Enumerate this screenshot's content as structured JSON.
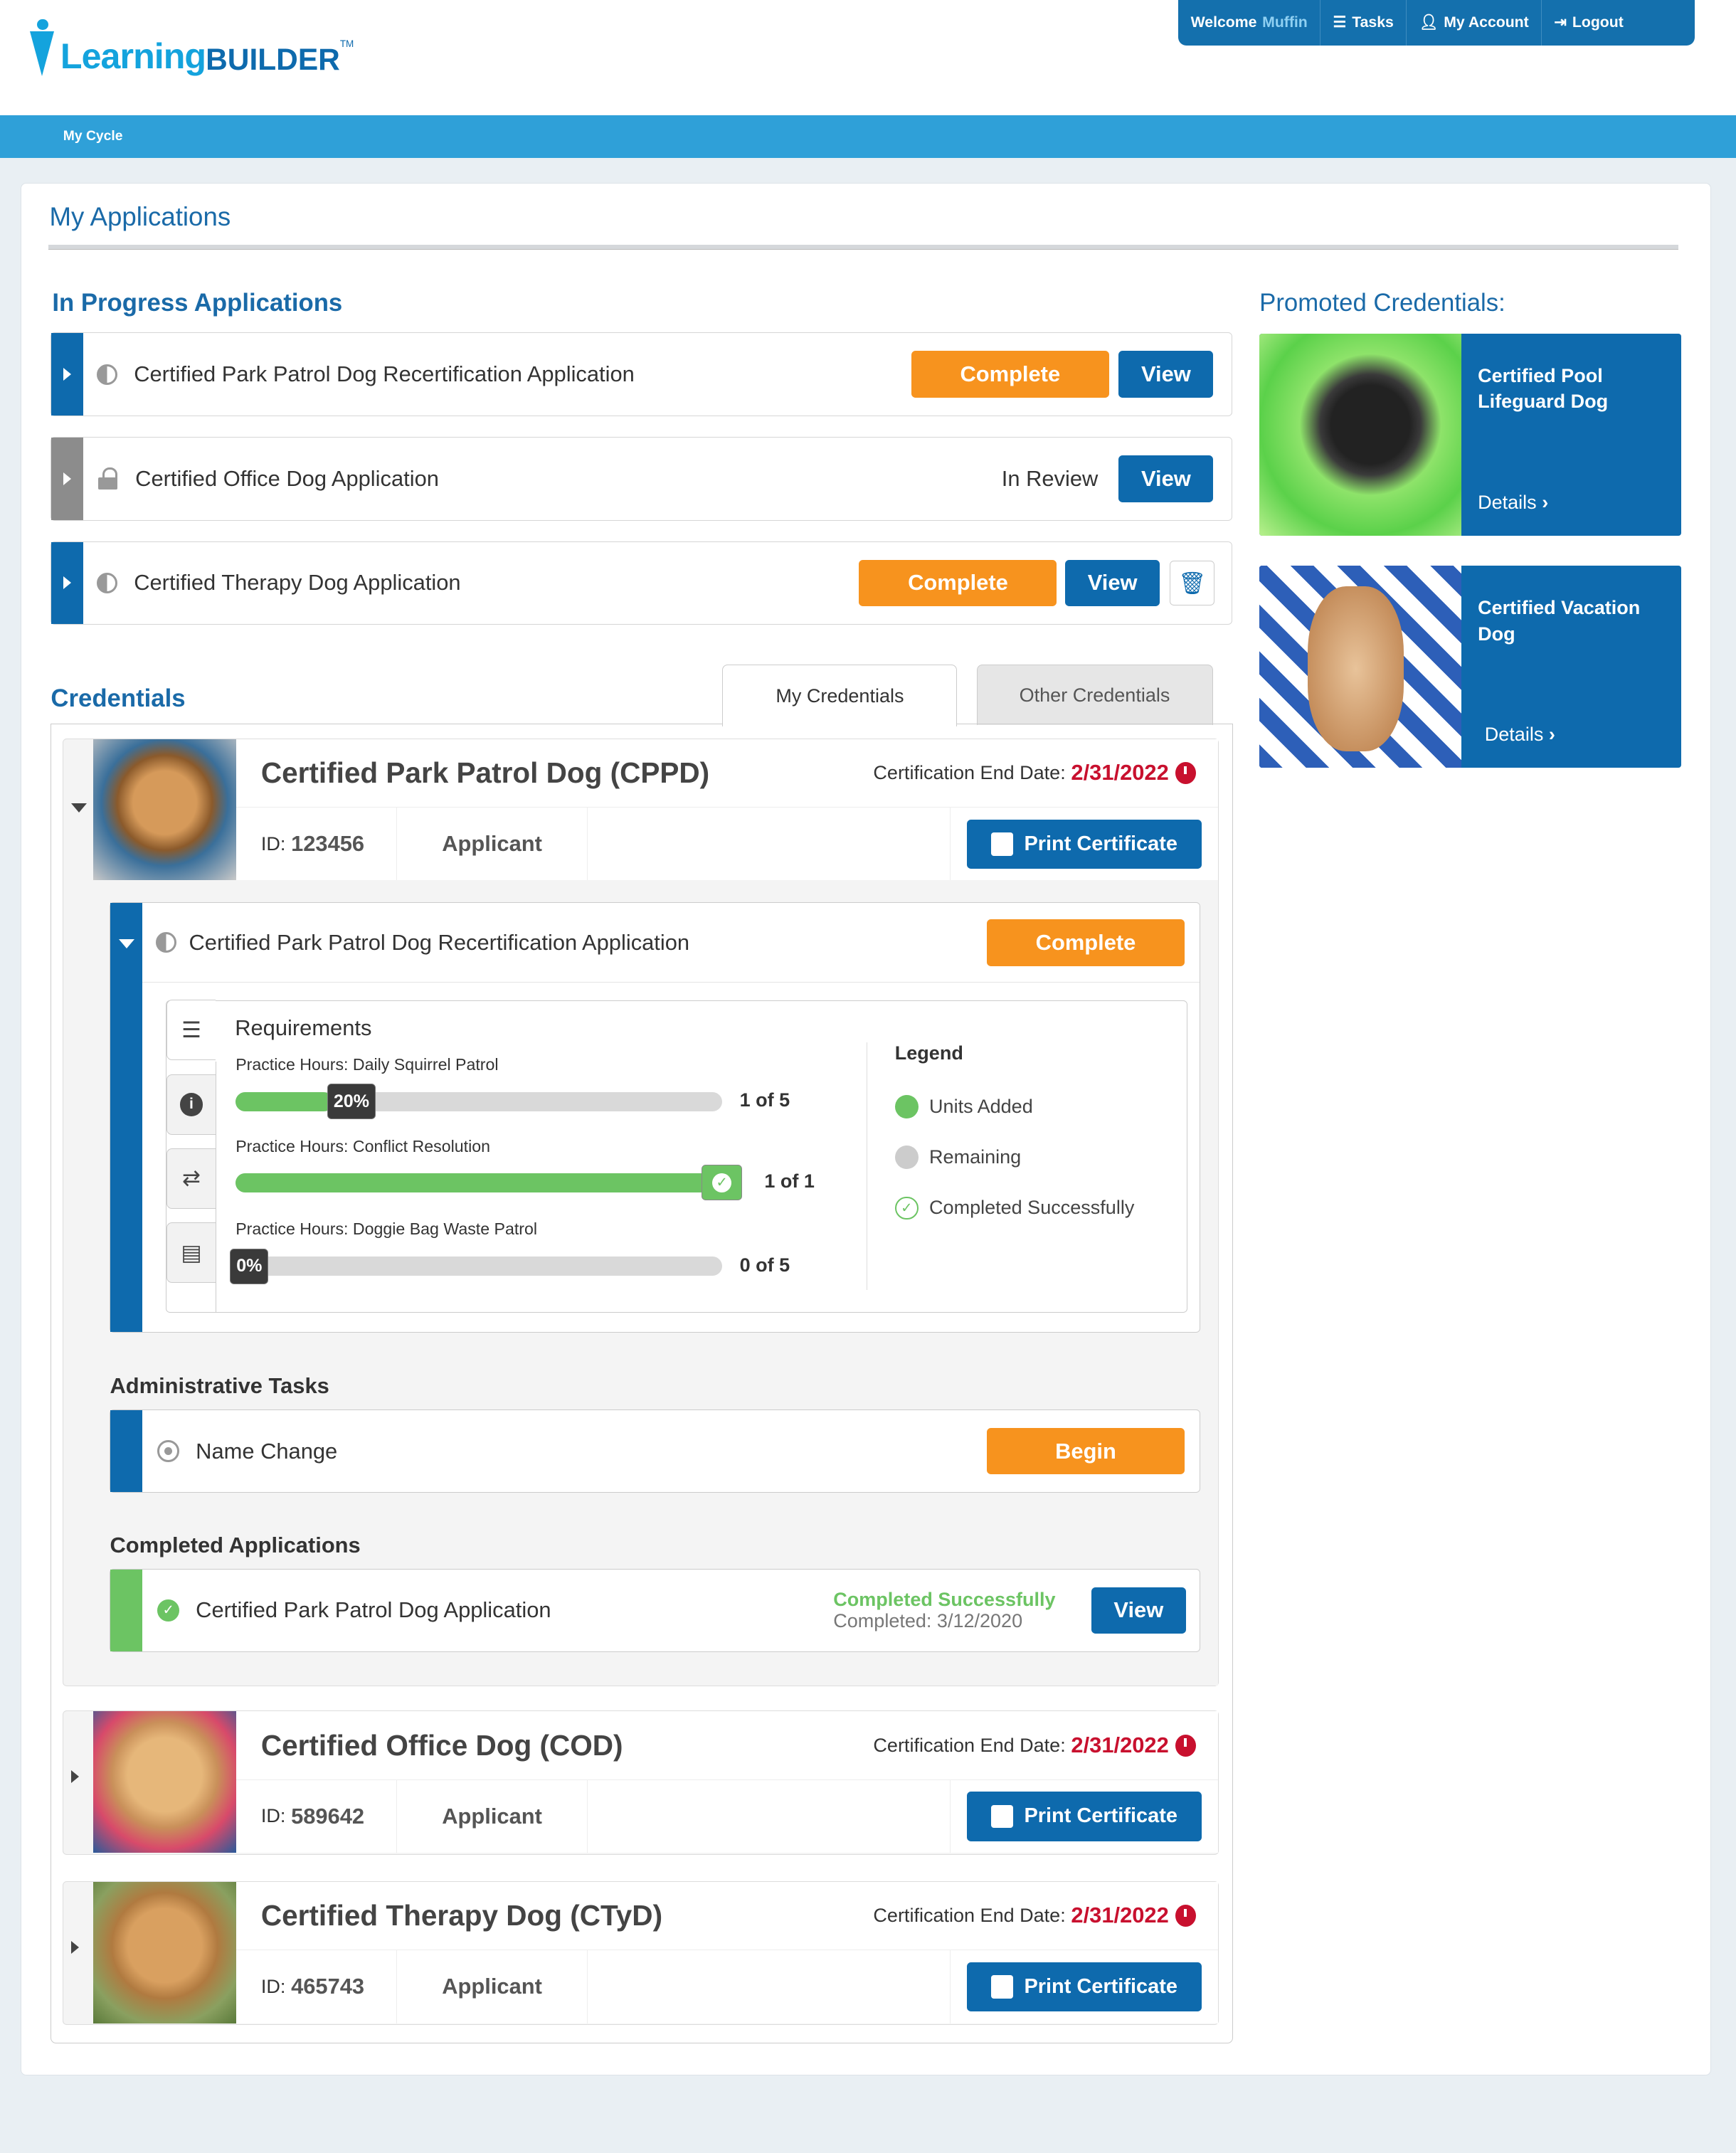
{
  "header": {
    "logo_text_1": "Learning",
    "logo_text_2": "Builder",
    "logo_tm": "TM",
    "welcome": "Welcome",
    "user": "Muffin",
    "tasks": "Tasks",
    "account": "My Account",
    "logout": "Logout"
  },
  "nav": {
    "my_cycle": "My Cycle"
  },
  "page_title": "My Applications",
  "in_progress": {
    "title": "In Progress Applications",
    "items": [
      {
        "title": "Certified Park Patrol Dog Recertification Application",
        "status_icon": "half-circle-icon",
        "action": "Complete",
        "view": "View"
      },
      {
        "title": "Certified Office Dog Application",
        "status_icon": "lock-icon",
        "status": "In Review",
        "view": "View"
      },
      {
        "title": "Certified Therapy Dog Application",
        "status_icon": "half-circle-icon",
        "action": "Complete",
        "view": "View",
        "delete_icon": "trash-icon"
      }
    ]
  },
  "credentials": {
    "title": "Credentials",
    "tabs": [
      "My Credentials",
      "Other Credentials"
    ],
    "active_tab": "My Credentials",
    "end_label": "Certification End Date:",
    "id_label": "ID:",
    "print": "Print Certificate",
    "items": [
      {
        "title": "Certified Park Patrol Dog (CPPD)",
        "end_date": "2/31/2022",
        "id": "123456",
        "role": "Applicant",
        "expanded": true
      },
      {
        "title": "Certified Office Dog (COD)",
        "end_date": "2/31/2022",
        "id": "589642",
        "role": "Applicant",
        "expanded": false
      },
      {
        "title": "Certified Therapy Dog (CTyD)",
        "end_date": "2/31/2022",
        "id": "465743",
        "role": "Applicant",
        "expanded": false
      }
    ]
  },
  "expanded": {
    "app_title": "Certified Park Patrol Dog Recertification Application",
    "app_action": "Complete",
    "requirements_title": "Requirements",
    "requirements": [
      {
        "label": "Practice Hours: Daily Squirrel Patrol",
        "percent": 20,
        "percent_label": "20%",
        "count": "1 of 5"
      },
      {
        "label": "Practice Hours: Conflict Resolution",
        "percent": 100,
        "count": "1 of 1"
      },
      {
        "label": "Practice Hours: Doggie Bag Waste Patrol",
        "percent": 0,
        "percent_label": "0%",
        "count": "0 of 5"
      }
    ],
    "legend": {
      "title": "Legend",
      "units_added": "Units Added",
      "remaining": "Remaining",
      "completed": "Completed Successfully"
    },
    "admin_title": "Administrative Tasks",
    "admin_task": "Name Change",
    "admin_action": "Begin",
    "completed_title": "Completed Applications",
    "completed_app": "Certified Park Patrol Dog Application",
    "completed_status": "Completed Successfully",
    "completed_date": "Completed: 3/12/2020",
    "completed_view": "View"
  },
  "promoted": {
    "title": "Promoted Credentials:",
    "items": [
      {
        "title": "Certified Pool Lifeguard Dog",
        "details": "Details"
      },
      {
        "title": "Certified Vacation Dog",
        "details": "Details"
      }
    ]
  },
  "colors": {
    "brand_blue": "#0e6aad",
    "bar_blue": "#2fa0d8",
    "orange": "#f7931e",
    "green": "#6cc463",
    "red": "#c8102e"
  }
}
